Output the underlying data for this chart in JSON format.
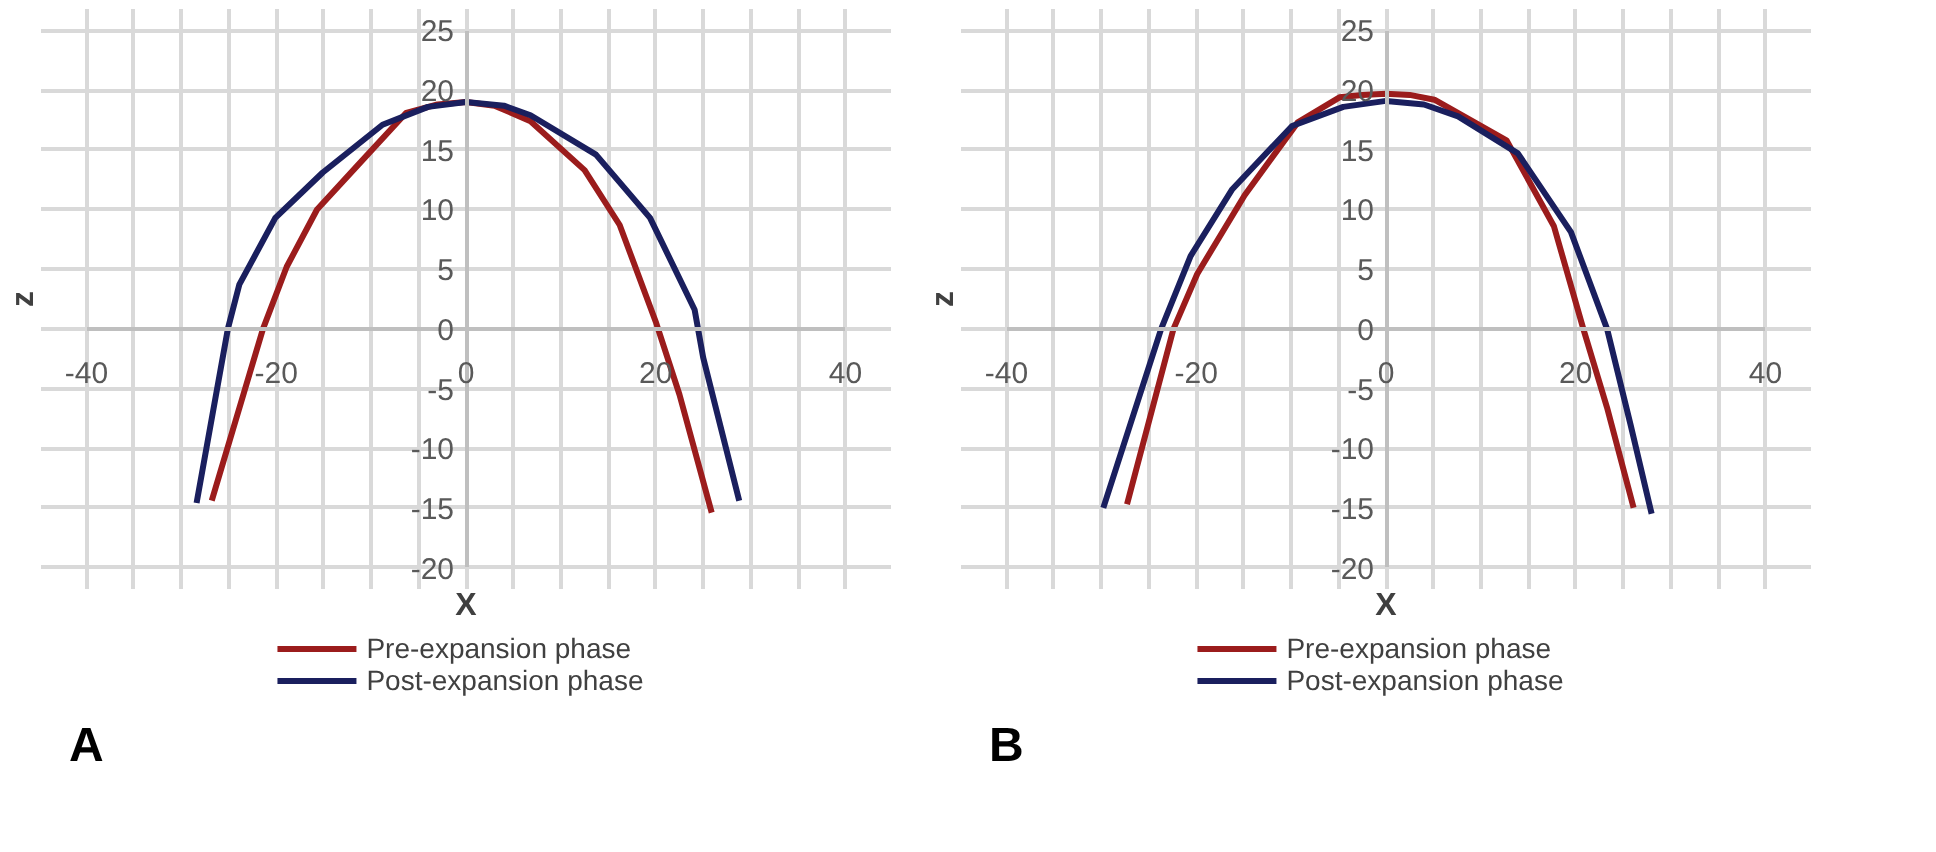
{
  "chart_data": [
    {
      "type": "line",
      "xlabel": "X",
      "ylabel": "z",
      "annotations": [
        "A"
      ],
      "grid": true,
      "legend": "bottom",
      "marker": "none",
      "line_style": "solid",
      "xlim": [
        -40,
        40
      ],
      "ylim": [
        -20,
        25
      ],
      "xticks": [
        -40,
        {
          "value": -35,
          "label": null
        },
        {
          "value": -30,
          "label": null
        },
        {
          "value": -25,
          "label": null
        },
        -20,
        {
          "value": -15,
          "label": null
        },
        {
          "value": -10,
          "label": null
        },
        {
          "value": -5,
          "label": null
        },
        0,
        {
          "value": 5,
          "label": null
        },
        {
          "value": 10,
          "label": null
        },
        {
          "value": 15,
          "label": null
        },
        20,
        {
          "value": 25,
          "label": null
        },
        {
          "value": 30,
          "label": null
        },
        {
          "value": 35,
          "label": null
        },
        40
      ],
      "yticks": [
        -20,
        -15,
        -10,
        -5,
        0,
        5,
        10,
        15,
        20,
        25
      ],
      "series": [
        {
          "name": "Pre-expansion phase",
          "color": "#9b1c1c",
          "x": [
            -26.8,
            -21.4,
            -18.9,
            -15.7,
            -11.3,
            -6.3,
            -3,
            0,
            3,
            6.8,
            12.5,
            16.2,
            20,
            22.5,
            25.9
          ],
          "values": [
            -14.4,
            0,
            5.2,
            10,
            13.8,
            18.1,
            18.8,
            19,
            18.7,
            17.4,
            13.3,
            8.7,
            0.6,
            -5.5,
            -15.4
          ]
        },
        {
          "name": "Post-expansion phase",
          "color": "#1a1f5e",
          "x": [
            -28.4,
            -25.1,
            -23.9,
            -20.1,
            -15.1,
            -8.8,
            -4,
            0,
            4,
            6.8,
            13.7,
            19.4,
            24.1,
            25,
            28.8
          ],
          "values": [
            -14.6,
            0,
            3.7,
            9.3,
            13.1,
            17.1,
            18.6,
            19,
            18.7,
            17.9,
            14.6,
            9.3,
            1.6,
            -2.4,
            -14.4
          ]
        }
      ]
    },
    {
      "type": "line",
      "xlabel": "X",
      "ylabel": "z",
      "annotations": [
        "B"
      ],
      "grid": true,
      "legend": "bottom",
      "marker": "none",
      "line_style": "solid",
      "xlim": [
        -40,
        40
      ],
      "ylim": [
        -20,
        25
      ],
      "xticks": [
        -40,
        {
          "value": -35,
          "label": null
        },
        {
          "value": -30,
          "label": null
        },
        {
          "value": -25,
          "label": null
        },
        -20,
        {
          "value": -15,
          "label": null
        },
        {
          "value": -10,
          "label": null
        },
        {
          "value": -5,
          "label": null
        },
        0,
        {
          "value": 5,
          "label": null
        },
        {
          "value": 10,
          "label": null
        },
        {
          "value": 15,
          "label": null
        },
        20,
        {
          "value": 25,
          "label": null
        },
        {
          "value": 30,
          "label": null
        },
        {
          "value": 35,
          "label": null
        },
        40
      ],
      "yticks": [
        -20,
        -15,
        -10,
        -5,
        0,
        5,
        10,
        15,
        20,
        25
      ],
      "series": [
        {
          "name": "Pre-expansion phase",
          "color": "#9b1c1c",
          "x": [
            -27.3,
            -22.4,
            -19.9,
            -14.9,
            -9.3,
            -4.9,
            -2.5,
            0,
            2.5,
            5.1,
            12.7,
            17.7,
            20.8,
            23.3,
            26.1
          ],
          "values": [
            -14.7,
            0,
            4.6,
            11.2,
            17.3,
            19.4,
            19.6,
            19.7,
            19.6,
            19.2,
            15.8,
            8.6,
            0,
            -6.6,
            -15
          ]
        },
        {
          "name": "Post-expansion phase",
          "color": "#1a1f5e",
          "x": [
            -29.8,
            -23.7,
            -20.6,
            -16.2,
            -9.9,
            -4.5,
            0,
            4,
            7.6,
            13.9,
            19.5,
            23.3,
            25.8,
            28
          ],
          "values": [
            -15,
            0,
            6.1,
            11.7,
            17,
            18.6,
            19.1,
            18.8,
            17.8,
            14.7,
            8.1,
            0,
            -8.1,
            -15.5
          ]
        }
      ]
    }
  ]
}
